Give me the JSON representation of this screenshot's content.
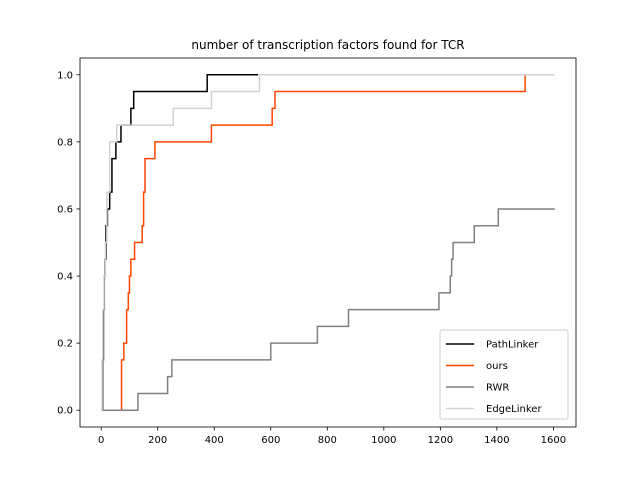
{
  "chart_data": {
    "type": "line",
    "title": "number of transcription factors found for TCR",
    "xlabel": "",
    "ylabel": "",
    "xlim": [
      -75,
      1680
    ],
    "ylim": [
      -0.05,
      1.05
    ],
    "xticks": [
      0,
      200,
      400,
      600,
      800,
      1000,
      1200,
      1400,
      1600
    ],
    "yticks": [
      0.0,
      0.2,
      0.4,
      0.6,
      0.8,
      1.0
    ],
    "xtick_labels": [
      "0",
      "200",
      "400",
      "600",
      "800",
      "1000",
      "1200",
      "1400",
      "1600"
    ],
    "ytick_labels": [
      "0.0",
      "0.2",
      "0.4",
      "0.6",
      "0.8",
      "1.0"
    ],
    "legend_position": "lower-right",
    "grid": false,
    "series": [
      {
        "name": "PathLinker",
        "color": "#000000",
        "points": [
          [
            0,
            0
          ],
          [
            5,
            0.15
          ],
          [
            8,
            0.3
          ],
          [
            11,
            0.4
          ],
          [
            14,
            0.45
          ],
          [
            17,
            0.55
          ],
          [
            22,
            0.6
          ],
          [
            30,
            0.65
          ],
          [
            38,
            0.75
          ],
          [
            52,
            0.8
          ],
          [
            70,
            0.85
          ],
          [
            105,
            0.9
          ],
          [
            115,
            0.95
          ],
          [
            375,
            1.0
          ],
          [
            555,
            1.0
          ]
        ]
      },
      {
        "name": "ours",
        "color": "#ff4500",
        "points": [
          [
            0,
            0
          ],
          [
            68,
            0
          ],
          [
            72,
            0.15
          ],
          [
            80,
            0.2
          ],
          [
            90,
            0.3
          ],
          [
            96,
            0.35
          ],
          [
            100,
            0.4
          ],
          [
            105,
            0.45
          ],
          [
            118,
            0.5
          ],
          [
            145,
            0.55
          ],
          [
            150,
            0.65
          ],
          [
            155,
            0.75
          ],
          [
            190,
            0.8
          ],
          [
            390,
            0.85
          ],
          [
            605,
            0.9
          ],
          [
            615,
            0.95
          ],
          [
            1500,
            1.0
          ]
        ]
      },
      {
        "name": "RWR",
        "color": "#808080",
        "points": [
          [
            0,
            0
          ],
          [
            128,
            0
          ],
          [
            130,
            0.05
          ],
          [
            235,
            0.1
          ],
          [
            250,
            0.15
          ],
          [
            600,
            0.2
          ],
          [
            765,
            0.25
          ],
          [
            875,
            0.3
          ],
          [
            1195,
            0.35
          ],
          [
            1235,
            0.4
          ],
          [
            1240,
            0.45
          ],
          [
            1245,
            0.5
          ],
          [
            1320,
            0.55
          ],
          [
            1405,
            0.6
          ],
          [
            1605,
            0.6
          ]
        ]
      },
      {
        "name": "EdgeLinker",
        "color": "#d3d3d3",
        "points": [
          [
            0,
            0
          ],
          [
            3,
            0.15
          ],
          [
            6,
            0.3
          ],
          [
            10,
            0.4
          ],
          [
            15,
            0.5
          ],
          [
            20,
            0.65
          ],
          [
            30,
            0.8
          ],
          [
            55,
            0.85
          ],
          [
            255,
            0.9
          ],
          [
            390,
            0.95
          ],
          [
            560,
            1.0
          ],
          [
            1605,
            1.0
          ]
        ]
      }
    ]
  }
}
